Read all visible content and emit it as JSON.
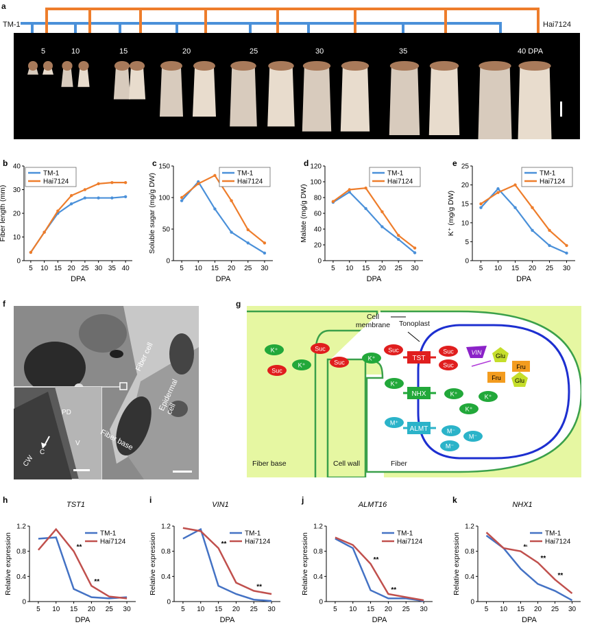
{
  "panel_a": {
    "label": "a",
    "left_cultivar": "TM-1",
    "right_cultivar": "Hai7124",
    "timepoints": [
      "5",
      "10",
      "15",
      "20",
      "25",
      "30",
      "35",
      "40 DPA"
    ],
    "colors": {
      "tm1": "#4a90d9",
      "hai": "#ee7d2b"
    }
  },
  "panel_f": {
    "label": "f",
    "labels": [
      "Fiber cell",
      "Epidermal cell",
      "Fiber base",
      "PD",
      "C",
      "V",
      "CW"
    ]
  },
  "panel_g": {
    "label": "g",
    "cell_membrane": "Cell membrane",
    "tonoplast": "Tonoplast",
    "fiber_base": "Fiber base",
    "cell_wall": "Cell wall",
    "fiber": "Fiber",
    "transporters": [
      "TST",
      "NHX",
      "ALMT"
    ],
    "vin": "VIN",
    "suc": "Suc",
    "kplus": "K⁺",
    "mplus": "M⁺",
    "mminus": "M⁻",
    "glu": "Glu",
    "fru": "Fru"
  },
  "chart_data": [
    {
      "id": "b",
      "label": "b",
      "type": "line",
      "xlabel": "DPA",
      "ylabel": "Fiber length (mm)",
      "x": [
        5,
        10,
        15,
        20,
        25,
        30,
        35,
        40
      ],
      "ylim": [
        0,
        40
      ],
      "yticks": [
        0,
        10,
        20,
        30,
        40
      ],
      "series": [
        {
          "name": "TM-1",
          "color": "#4a90d9",
          "values": [
            3.5,
            12,
            20,
            24,
            26.5,
            26.5,
            26.5,
            27
          ]
        },
        {
          "name": "Hai7124",
          "color": "#ee7d2b",
          "values": [
            3.5,
            12,
            21,
            27.5,
            30,
            32.5,
            33,
            33
          ]
        }
      ],
      "legend": "top-left"
    },
    {
      "id": "c",
      "label": "c",
      "type": "line",
      "xlabel": "DPA",
      "ylabel": "Soluble sugar (mg/g DW)",
      "x": [
        5,
        10,
        15,
        20,
        25,
        30
      ],
      "ylim": [
        0,
        150
      ],
      "yticks": [
        0,
        50,
        100,
        150
      ],
      "series": [
        {
          "name": "TM-1",
          "color": "#4a90d9",
          "values": [
            95,
            125,
            82,
            45,
            28,
            12
          ]
        },
        {
          "name": "Hai7124",
          "color": "#ee7d2b",
          "values": [
            100,
            122,
            135,
            95,
            49,
            28
          ]
        }
      ],
      "legend": "top-right"
    },
    {
      "id": "d",
      "label": "d",
      "type": "line",
      "xlabel": "DPA",
      "ylabel": "Malate (mg/g DW)",
      "x": [
        5,
        10,
        15,
        20,
        25,
        30
      ],
      "ylim": [
        0,
        120
      ],
      "yticks": [
        0,
        20,
        40,
        60,
        80,
        100,
        120
      ],
      "series": [
        {
          "name": "TM-1",
          "color": "#4a90d9",
          "values": [
            74,
            87,
            66,
            43,
            27,
            10
          ]
        },
        {
          "name": "Hai7124",
          "color": "#ee7d2b",
          "values": [
            75,
            90,
            92,
            62,
            32,
            16
          ]
        }
      ],
      "legend": "top-right"
    },
    {
      "id": "e",
      "label": "e",
      "type": "line",
      "xlabel": "DPA",
      "ylabel": "K⁺ (mg/g DW)",
      "x": [
        5,
        10,
        15,
        20,
        25,
        30
      ],
      "ylim": [
        0,
        25
      ],
      "yticks": [
        0,
        5,
        10,
        15,
        20,
        25
      ],
      "series": [
        {
          "name": "TM-1",
          "color": "#4a90d9",
          "values": [
            14,
            19,
            14,
            8,
            4,
            2
          ]
        },
        {
          "name": "Hai7124",
          "color": "#ee7d2b",
          "values": [
            15,
            18,
            20,
            14,
            8,
            4
          ]
        }
      ],
      "legend": "top-right"
    },
    {
      "id": "h",
      "label": "h",
      "gene": "TST1",
      "type": "line",
      "xlabel": "DPA",
      "ylabel": "Relative expression",
      "x": [
        5,
        10,
        15,
        20,
        25,
        30
      ],
      "ylim": [
        0,
        1.2
      ],
      "yticks": [
        0,
        0.4,
        0.8,
        1.2
      ],
      "series": [
        {
          "name": "TM-1",
          "color": "#4472c4",
          "values": [
            1.0,
            1.02,
            0.2,
            0.07,
            0.05,
            0.07
          ]
        },
        {
          "name": "Hai7124",
          "color": "#c0504d",
          "values": [
            0.82,
            1.15,
            0.8,
            0.25,
            0.08,
            0.05
          ]
        }
      ],
      "sig": [
        {
          "x": 15,
          "text": "**"
        },
        {
          "x": 20,
          "text": "**"
        }
      ],
      "legend": "top-right"
    },
    {
      "id": "i",
      "label": "i",
      "gene": "VIN1",
      "type": "line",
      "xlabel": "DPA",
      "ylabel": "Relative expression",
      "x": [
        5,
        10,
        15,
        20,
        25,
        30
      ],
      "ylim": [
        0,
        1.2
      ],
      "yticks": [
        0,
        0.4,
        0.8,
        1.2
      ],
      "series": [
        {
          "name": "TM-1",
          "color": "#4472c4",
          "values": [
            1.0,
            1.15,
            0.25,
            0.12,
            0.03,
            0.01
          ]
        },
        {
          "name": "Hai7124",
          "color": "#c0504d",
          "values": [
            1.17,
            1.12,
            0.85,
            0.3,
            0.17,
            0.12
          ]
        }
      ],
      "sig": [
        {
          "x": 15,
          "text": "**"
        },
        {
          "x": 25,
          "text": "**"
        }
      ],
      "legend": "top-right"
    },
    {
      "id": "j",
      "label": "j",
      "gene": "ALMT16",
      "type": "line",
      "xlabel": "DPA",
      "ylabel": "Relative expression",
      "x": [
        5,
        10,
        15,
        20,
        25,
        30
      ],
      "ylim": [
        0,
        1.2
      ],
      "yticks": [
        0,
        0.4,
        0.8,
        1.2
      ],
      "series": [
        {
          "name": "TM-1",
          "color": "#4472c4",
          "values": [
            1.0,
            0.85,
            0.18,
            0.05,
            0.05,
            0.01
          ]
        },
        {
          "name": "Hai7124",
          "color": "#c0504d",
          "values": [
            1.02,
            0.9,
            0.6,
            0.12,
            0.07,
            0.02
          ]
        }
      ],
      "sig": [
        {
          "x": 15,
          "text": "**"
        },
        {
          "x": 20,
          "text": "**"
        }
      ],
      "legend": "top-right"
    },
    {
      "id": "k",
      "label": "k",
      "gene": "NHX1",
      "type": "line",
      "xlabel": "DPA",
      "ylabel": "Relative expression",
      "x": [
        5,
        10,
        15,
        20,
        25,
        30
      ],
      "ylim": [
        0,
        1.2
      ],
      "yticks": [
        0,
        0.4,
        0.8,
        1.2
      ],
      "series": [
        {
          "name": "TM-1",
          "color": "#4472c4",
          "values": [
            1.05,
            0.85,
            0.52,
            0.28,
            0.17,
            0.02
          ]
        },
        {
          "name": "Hai7124",
          "color": "#c0504d",
          "values": [
            1.1,
            0.85,
            0.8,
            0.62,
            0.35,
            0.13
          ]
        }
      ],
      "sig": [
        {
          "x": 15,
          "text": "**"
        },
        {
          "x": 20,
          "text": "**"
        },
        {
          "x": 25,
          "text": "**"
        }
      ],
      "legend": "top-right"
    }
  ]
}
